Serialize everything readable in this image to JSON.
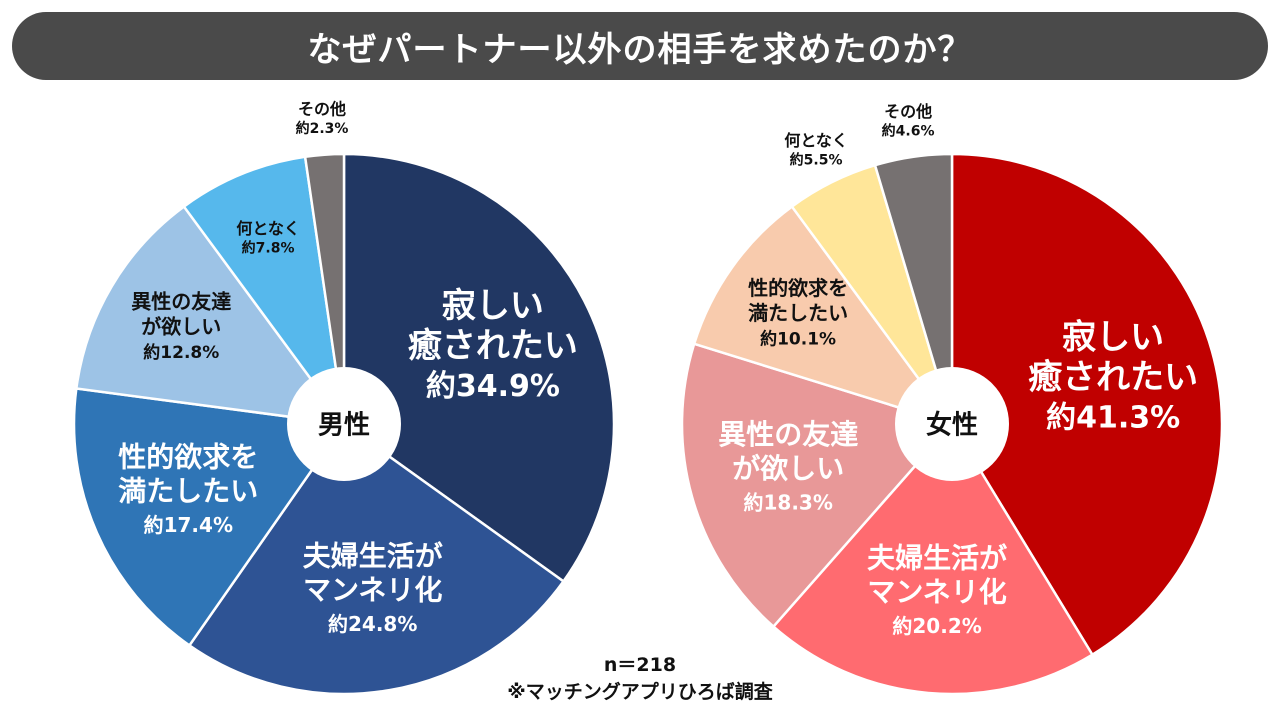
{
  "title": "なぜパートナー以外の相手を求めたのか？",
  "colors": {
    "title_bg": "#4a4a4a"
  },
  "chart_data": [
    {
      "type": "pie",
      "center_label": "男性",
      "slices": [
        {
          "lines": [
            "寂しい",
            "癒されたい"
          ],
          "pct_label": "約34.9%",
          "value": 34.9,
          "color": "#213763",
          "text_color": "#ffffff",
          "size": "large",
          "outside": false
        },
        {
          "lines": [
            "夫婦生活が",
            "マンネリ化"
          ],
          "pct_label": "約24.8%",
          "value": 24.8,
          "color": "#2e5394",
          "text_color": "#ffffff",
          "size": "medium",
          "outside": false
        },
        {
          "lines": [
            "性的欲求を",
            "満たしたい"
          ],
          "pct_label": "約17.4%",
          "value": 17.4,
          "color": "#2f75b6",
          "text_color": "#ffffff",
          "size": "medium",
          "outside": false
        },
        {
          "lines": [
            "異性の友達",
            "が欲しい"
          ],
          "pct_label": "約12.8%",
          "value": 12.8,
          "color": "#9dc3e6",
          "text_color": "#111111",
          "size": "small",
          "outside": false
        },
        {
          "lines": [
            "何となく"
          ],
          "pct_label": "約7.8%",
          "value": 7.8,
          "color": "#56b8ec",
          "text_color": "#111111",
          "size": "xsmall",
          "outside": false
        },
        {
          "lines": [
            "その他"
          ],
          "pct_label": "約2.3%",
          "value": 2.3,
          "color": "#767171",
          "text_color": "#111111",
          "size": "xsmall",
          "outside": true
        }
      ]
    },
    {
      "type": "pie",
      "center_label": "女性",
      "slices": [
        {
          "lines": [
            "寂しい",
            "癒されたい"
          ],
          "pct_label": "約41.3%",
          "value": 41.3,
          "color": "#c00000",
          "text_color": "#ffffff",
          "size": "large",
          "outside": false
        },
        {
          "lines": [
            "夫婦生活が",
            "マンネリ化"
          ],
          "pct_label": "約20.2%",
          "value": 20.2,
          "color": "#ff6b70",
          "text_color": "#ffffff",
          "size": "medium",
          "outside": false
        },
        {
          "lines": [
            "異性の友達",
            "が欲しい"
          ],
          "pct_label": "約18.3%",
          "value": 18.3,
          "color": "#e89898",
          "text_color": "#ffffff",
          "size": "medium",
          "outside": false
        },
        {
          "lines": [
            "性的欲求を",
            "満たしたい"
          ],
          "pct_label": "約10.1%",
          "value": 10.1,
          "color": "#f8cbad",
          "text_color": "#111111",
          "size": "small",
          "outside": false
        },
        {
          "lines": [
            "何となく"
          ],
          "pct_label": "約5.5%",
          "value": 5.5,
          "color": "#ffe699",
          "text_color": "#111111",
          "size": "xsmall",
          "outside": true
        },
        {
          "lines": [
            "その他"
          ],
          "pct_label": "約4.6%",
          "value": 4.6,
          "color": "#767171",
          "text_color": "#111111",
          "size": "xsmall",
          "outside": true
        }
      ]
    }
  ],
  "footer": {
    "sample": "n＝218",
    "source": "※マッチングアプリひろば調査"
  }
}
